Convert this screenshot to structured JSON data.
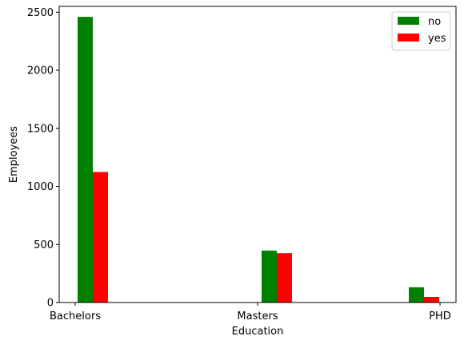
{
  "chart_data": {
    "type": "bar",
    "categories": [
      "Bachelors",
      "Masters",
      "PHD"
    ],
    "series": [
      {
        "name": "no",
        "values": [
          2460,
          447,
          131
        ],
        "color": "#008000"
      },
      {
        "name": "yes",
        "values": [
          1124,
          425,
          48
        ],
        "color": "#ff0000"
      }
    ],
    "xlabel": "Education",
    "ylabel": "Employees",
    "ylim": [
      0,
      2550
    ],
    "yticks": [
      0,
      500,
      1000,
      1500,
      2000,
      2500
    ],
    "grid": false,
    "legend_position": "top-right"
  }
}
